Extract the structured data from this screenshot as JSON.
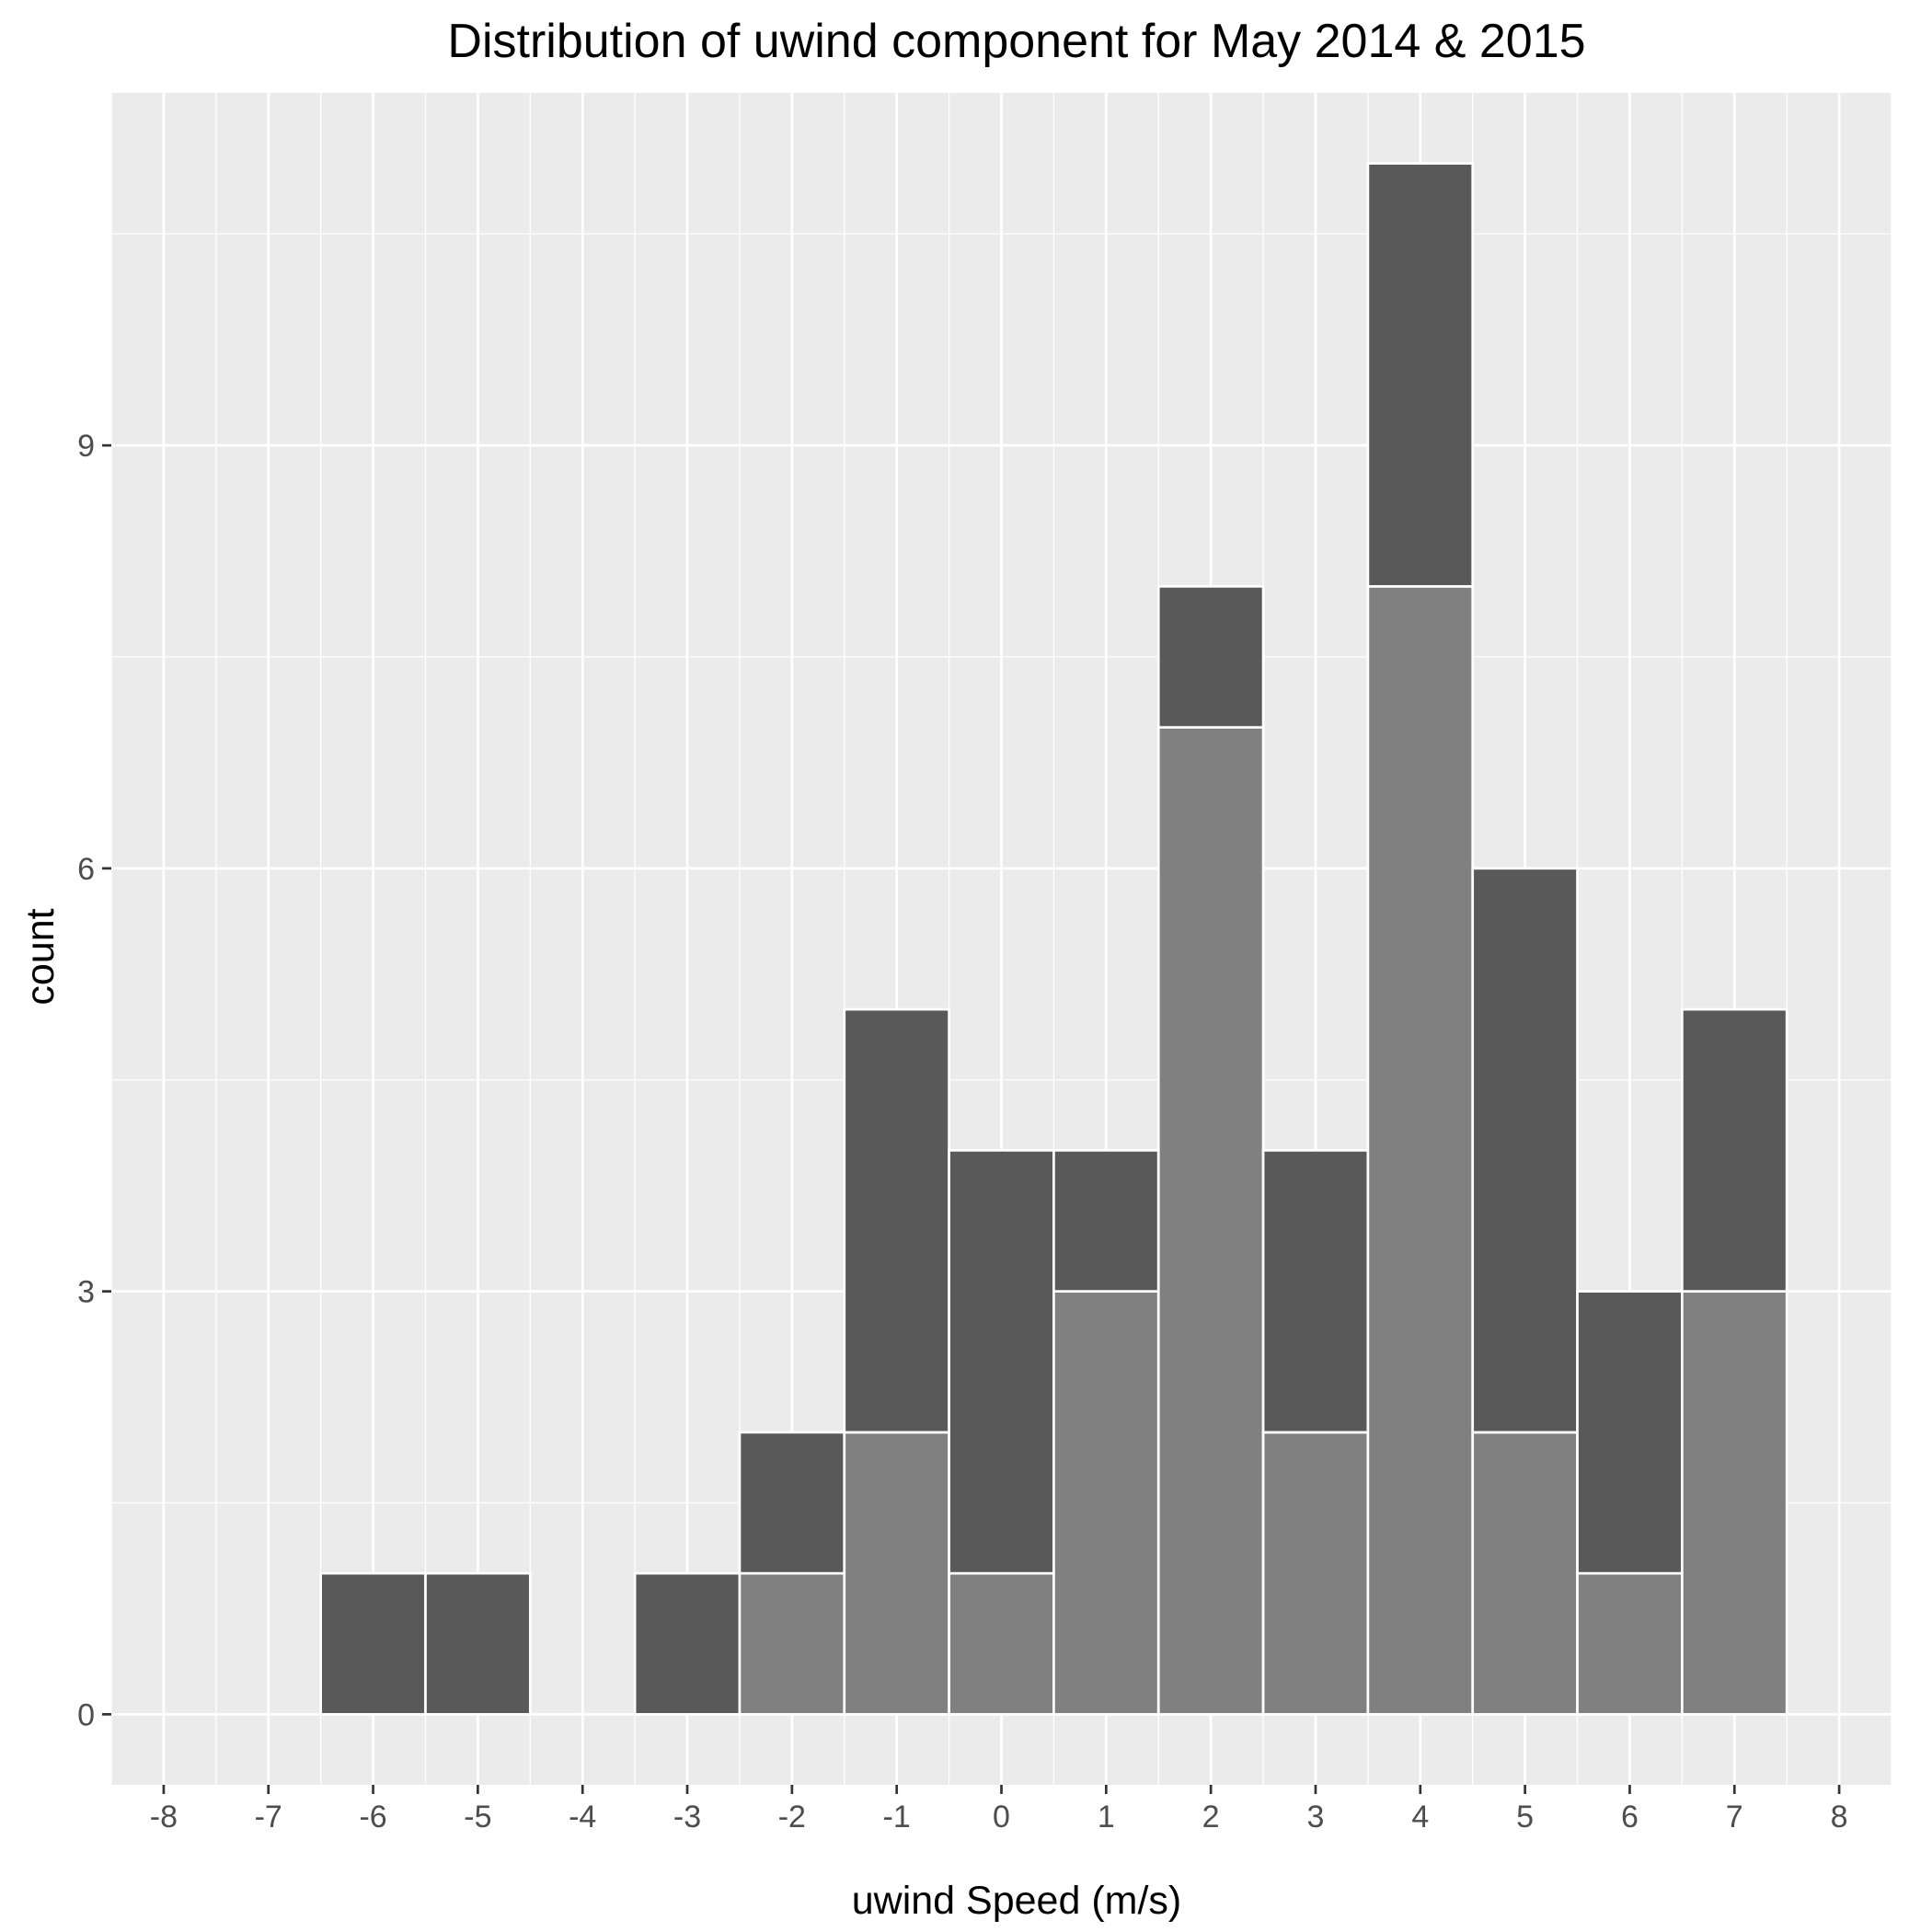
{
  "chart_data": {
    "type": "bar",
    "title": "Distribution of uwind component for May 2014 & 2015",
    "xlabel": "uwind Speed (m/s)",
    "ylabel": "count",
    "stacked": true,
    "xlim": [
      -8.5,
      8.5
    ],
    "ylim": [
      -0.5,
      11.5
    ],
    "x_ticks": [
      "-8",
      "-7",
      "-6",
      "-5",
      "-4",
      "-3",
      "-2",
      "-1",
      "0",
      "1",
      "2",
      "3",
      "4",
      "5",
      "6",
      "7",
      "8"
    ],
    "y_ticks": [
      "0",
      "3",
      "6",
      "9"
    ],
    "x": [
      -6,
      -5,
      -3,
      -2,
      -1,
      0,
      1,
      2,
      3,
      4,
      5,
      6,
      7
    ],
    "series": [
      {
        "color": "#808080",
        "values": [
          0,
          0,
          0,
          1,
          2,
          1,
          3,
          7,
          2,
          8,
          2,
          1,
          3
        ]
      },
      {
        "color": "#595959",
        "values": [
          1,
          1,
          1,
          1,
          3,
          3,
          1,
          1,
          2,
          3,
          4,
          2,
          2
        ]
      }
    ],
    "grid": true,
    "panel_background": "#ebebeb",
    "grid_color": "#ffffff",
    "bar_outline": "#ffffff",
    "legend": "none"
  }
}
